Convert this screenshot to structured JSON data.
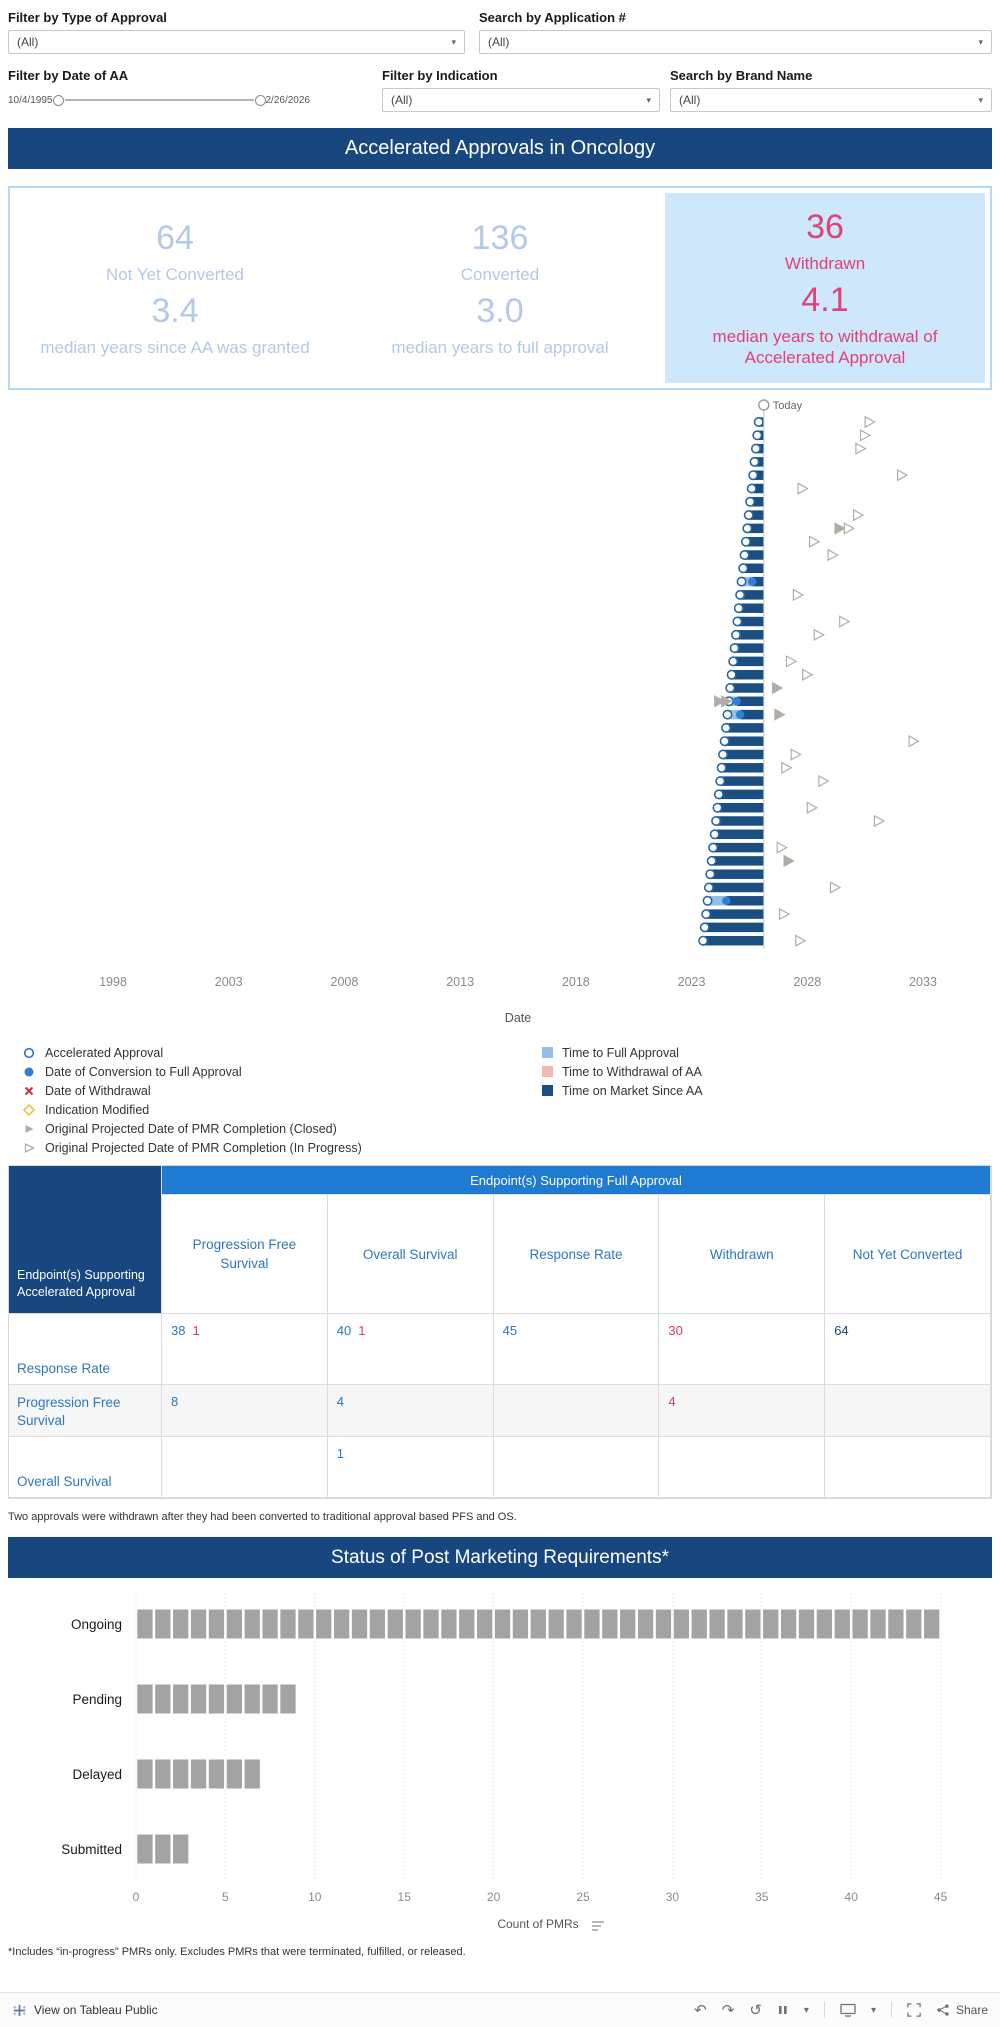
{
  "colors": {
    "navy": "#17477e",
    "bar_navy": "#1b4f82",
    "bright_blue": "#1f7ad1",
    "link_blue": "#2e77bc",
    "pink": "#df4178",
    "red": "#d23a6e",
    "pale_blue": "#b3c9e6",
    "highlight_bg": "#cfe7fb",
    "time_full": "#8ec0ea",
    "time_withdrawal": "#f6b7b2",
    "gray_bar": "#a3a3a3",
    "marker_gray": "#b3aca4",
    "conversion_blue": "#2f7ed8",
    "withdrawal_red": "#c9353f",
    "indication_yellow": "#e8c02a"
  },
  "filters": {
    "type_of_approval": {
      "label": "Filter by Type of Approval",
      "value": "(All)"
    },
    "application_number": {
      "label": "Search by Application #",
      "value": "(All)"
    },
    "date_of_aa": {
      "label": "Filter by Date of AA",
      "start": "10/4/1995",
      "end": "2/26/2026"
    },
    "indication": {
      "label": "Filter by Indication",
      "value": "(All)"
    },
    "brand_name": {
      "label": "Search by Brand Name",
      "value": "(All)"
    }
  },
  "header": {
    "title": "Accelerated Approvals in Oncology"
  },
  "summary": {
    "not_yet_converted": {
      "count": "64",
      "label": "Not Yet Converted",
      "median": "3.4",
      "median_label": "median years since AA was granted"
    },
    "converted": {
      "count": "136",
      "label": "Converted",
      "median": "3.0",
      "median_label": "median years to full approval"
    },
    "withdrawn": {
      "count": "36",
      "label": "Withdrawn",
      "median": "4.1",
      "median_label": "median years to withdrawal of Accelerated Approval"
    }
  },
  "chart_data": [
    {
      "type": "gantt",
      "xlabel": "Date",
      "x_ticks": [
        1998,
        2003,
        2008,
        2013,
        2018,
        2023,
        2028,
        2033
      ],
      "x_range": [
        1995.6,
        2035.6
      ],
      "today": 2026.12,
      "today_label": "Today",
      "rows": [
        {
          "s": 2025.9,
          "p": [
            [
              2030.5,
              0
            ]
          ]
        },
        {
          "s": 2025.84,
          "p": [
            [
              2030.3,
              0
            ]
          ]
        },
        {
          "s": 2025.78,
          "p": [
            [
              2030.1,
              0
            ]
          ]
        },
        {
          "s": 2025.72,
          "p": []
        },
        {
          "s": 2025.66,
          "p": [
            [
              2031.9,
              0
            ]
          ]
        },
        {
          "s": 2025.6,
          "p": [
            [
              2027.6,
              0
            ]
          ]
        },
        {
          "s": 2025.53,
          "p": []
        },
        {
          "s": 2025.47,
          "p": [
            [
              2030.0,
              0
            ]
          ]
        },
        {
          "s": 2025.41,
          "p": [
            [
              2029.2,
              1
            ],
            [
              2029.6,
              0
            ]
          ]
        },
        {
          "s": 2025.35,
          "p": [
            [
              2028.1,
              0
            ]
          ]
        },
        {
          "s": 2025.29,
          "p": [
            [
              2028.9,
              0
            ]
          ]
        },
        {
          "s": 2025.23,
          "p": []
        },
        {
          "s": 2025.16,
          "c": 2025.62,
          "p": []
        },
        {
          "s": 2025.1,
          "p": [
            [
              2027.4,
              0
            ]
          ]
        },
        {
          "s": 2025.04,
          "p": []
        },
        {
          "s": 2024.98,
          "p": [
            [
              2029.4,
              0
            ]
          ]
        },
        {
          "s": 2024.92,
          "p": [
            [
              2028.3,
              0
            ]
          ]
        },
        {
          "s": 2024.86,
          "p": []
        },
        {
          "s": 2024.8,
          "p": [
            [
              2027.1,
              0
            ]
          ]
        },
        {
          "s": 2024.73,
          "p": [
            [
              2027.8,
              0
            ]
          ]
        },
        {
          "s": 2024.67,
          "p": [
            [
              2026.5,
              1
            ]
          ]
        },
        {
          "s": 2024.61,
          "c": 2024.95,
          "p": [
            [
              2024.0,
              1
            ],
            [
              2024.3,
              1
            ]
          ]
        },
        {
          "s": 2024.55,
          "c": 2025.1,
          "p": [
            [
              2026.6,
              1
            ]
          ]
        },
        {
          "s": 2024.49,
          "p": []
        },
        {
          "s": 2024.43,
          "p": [
            [
              2032.4,
              0
            ]
          ]
        },
        {
          "s": 2024.36,
          "p": [
            [
              2027.3,
              0
            ]
          ]
        },
        {
          "s": 2024.3,
          "p": [
            [
              2026.9,
              0
            ]
          ]
        },
        {
          "s": 2024.24,
          "p": [
            [
              2028.5,
              0
            ]
          ]
        },
        {
          "s": 2024.18,
          "p": []
        },
        {
          "s": 2024.12,
          "p": [
            [
              2028.0,
              0
            ]
          ]
        },
        {
          "s": 2024.06,
          "p": [
            [
              2030.9,
              0
            ]
          ]
        },
        {
          "s": 2024.0,
          "p": []
        },
        {
          "s": 2023.93,
          "p": [
            [
              2026.7,
              0
            ]
          ]
        },
        {
          "s": 2023.87,
          "p": [
            [
              2027.0,
              1
            ]
          ]
        },
        {
          "s": 2023.81,
          "p": []
        },
        {
          "s": 2023.75,
          "p": [
            [
              2029.0,
              0
            ]
          ]
        },
        {
          "s": 2023.69,
          "c": 2024.5,
          "p": []
        },
        {
          "s": 2023.63,
          "p": [
            [
              2026.8,
              0
            ]
          ]
        },
        {
          "s": 2023.57,
          "p": []
        },
        {
          "s": 2023.5,
          "p": [
            [
              2027.5,
              0
            ]
          ]
        }
      ]
    },
    {
      "type": "bar",
      "orientation": "horizontal",
      "title": "Status of Post Marketing Requirements*",
      "categories": [
        "Ongoing",
        "Pending",
        "Delayed",
        "Submitted"
      ],
      "values": [
        45,
        9,
        7,
        3
      ],
      "xlabel": "Count of PMRs",
      "xlim": [
        0,
        47
      ],
      "x_ticks": [
        0,
        5,
        10,
        15,
        20,
        25,
        30,
        35,
        40,
        45
      ],
      "unit_chart": true
    }
  ],
  "legend": {
    "shapes": [
      {
        "name": "accelerated-approval",
        "marker": "open-circle",
        "label": "Accelerated Approval"
      },
      {
        "name": "conversion-to-full-approval",
        "marker": "filled-circle",
        "label": "Date of Conversion to Full Approval"
      },
      {
        "name": "date-of-withdrawal",
        "marker": "red-x",
        "label": "Date of Withdrawal"
      },
      {
        "name": "indication-modified",
        "marker": "open-diamond",
        "label": "Indication Modified"
      },
      {
        "name": "pmr-completion-closed",
        "marker": "filled-triangle",
        "label": "Original Projected Date of PMR Completion (Closed)"
      },
      {
        "name": "pmr-completion-in-progress",
        "marker": "open-triangle",
        "label": "Original Projected Date of PMR Completion (In Progress)"
      }
    ],
    "swatches": [
      {
        "name": "time-to-full-approval",
        "color": "#8ec0ea",
        "label": "Time to Full Approval"
      },
      {
        "name": "time-to-withdrawal-of-aa",
        "color": "#f6b7b2",
        "label": "Time to Withdrawal of AA"
      },
      {
        "name": "time-on-market-since-aa",
        "color": "#1b4f82",
        "label": "Time on Market Since AA"
      }
    ]
  },
  "table": {
    "column_group_header": "Endpoint(s) Supporting Full Approval",
    "row_group_header": "Endpoint(s) Supporting Accelerated Approval",
    "columns": [
      "Progression Free Survival",
      "Overall Survival",
      "Response Rate",
      "Withdrawn",
      "Not Yet Converted"
    ],
    "rows": [
      {
        "label": "Response Rate",
        "cells": [
          [
            [
              "38",
              "blue"
            ],
            [
              "1",
              "red"
            ]
          ],
          [
            [
              "40",
              "blue"
            ],
            [
              "1",
              "red"
            ]
          ],
          [
            [
              "45",
              "blue"
            ]
          ],
          [
            [
              "30",
              "red"
            ]
          ],
          [
            [
              "64",
              "navy"
            ]
          ]
        ]
      },
      {
        "label": "Progression Free Survival",
        "cells": [
          [
            [
              "8",
              "blue"
            ]
          ],
          [
            [
              "4",
              "blue"
            ]
          ],
          [],
          [
            [
              "4",
              "red"
            ]
          ],
          []
        ]
      },
      {
        "label": "Overall Survival",
        "cells": [
          [],
          [
            [
              "1",
              "blue"
            ]
          ],
          [],
          [],
          []
        ]
      }
    ]
  },
  "pmr_header": {
    "title": "Status of Post Marketing Requirements*"
  },
  "footnotes": {
    "table": "Two approvals were withdrawn after they had been converted to traditional approval based PFS and OS.",
    "pmr": "*Includes “in-progress” PMRs only. Excludes PMRs that were terminated, fulfilled, or released."
  },
  "toolbar": {
    "view": "View on Tableau Public",
    "share": "Share"
  }
}
